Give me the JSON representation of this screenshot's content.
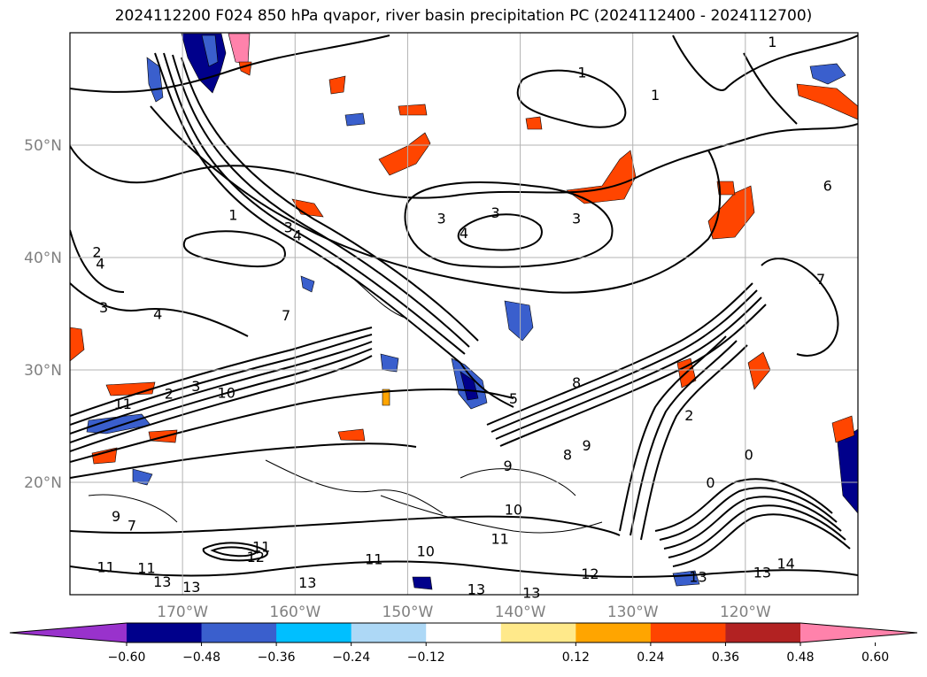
{
  "title": "2024112200 F024 850 hPa qvapor, river basin precipitation PC (2024112400 - 2024112700)",
  "chart_data": {
    "type": "heatmap",
    "title": "2024112200 F024 850 hPa qvapor, river basin precipitation PC (2024112400 - 2024112700)",
    "lon_range": [
      -180,
      -110
    ],
    "lat_range": [
      10,
      60
    ],
    "grid": true,
    "lon_ticks": [
      {
        "value": -170,
        "label": "170°W"
      },
      {
        "value": -160,
        "label": "160°W"
      },
      {
        "value": -150,
        "label": "150°W"
      },
      {
        "value": -140,
        "label": "140°W"
      },
      {
        "value": -130,
        "label": "130°W"
      },
      {
        "value": -120,
        "label": "120°W"
      }
    ],
    "lat_ticks": [
      {
        "value": 50,
        "label": "50°N"
      },
      {
        "value": 40,
        "label": "40°N"
      },
      {
        "value": 30,
        "label": "30°N"
      },
      {
        "value": 20,
        "label": "20°N"
      }
    ],
    "colorbar": {
      "extend": "both",
      "colors": [
        "#9932cc",
        "#00008b",
        "#3a5fcd",
        "#00bfff",
        "#add8f6",
        "#ffffff",
        "#ffe98a",
        "#ffa500",
        "#ff4500",
        "#b22222",
        "#ff82ab"
      ],
      "tick_values": [
        -0.6,
        -0.48,
        -0.36,
        -0.24,
        -0.12,
        0.12,
        0.24,
        0.36,
        0.48,
        0.6
      ],
      "tick_labels": [
        "−0.60",
        "−0.48",
        "−0.36",
        "−0.24",
        "−0.12",
        "0.12",
        "0.24",
        "0.36",
        "0.48",
        "0.60"
      ]
    },
    "contour_labels": [
      {
        "lon": -165.5,
        "lat": 43.8,
        "text": "1"
      },
      {
        "lon": -160.6,
        "lat": 42.7,
        "text": "3"
      },
      {
        "lon": -159.8,
        "lat": 42.0,
        "text": "4"
      },
      {
        "lon": -147.0,
        "lat": 43.5,
        "text": "3"
      },
      {
        "lon": -142.2,
        "lat": 44.0,
        "text": "3"
      },
      {
        "lon": -145.0,
        "lat": 42.2,
        "text": "4"
      },
      {
        "lon": -135.0,
        "lat": 43.5,
        "text": "3"
      },
      {
        "lon": -134.5,
        "lat": 56.5,
        "text": "1"
      },
      {
        "lon": -128.0,
        "lat": 54.5,
        "text": "1"
      },
      {
        "lon": -117.6,
        "lat": 59.2,
        "text": "1"
      },
      {
        "lon": -177.6,
        "lat": 40.5,
        "text": "2"
      },
      {
        "lon": -177.3,
        "lat": 39.5,
        "text": "4"
      },
      {
        "lon": -177.0,
        "lat": 35.6,
        "text": "3"
      },
      {
        "lon": -172.2,
        "lat": 35.0,
        "text": "4"
      },
      {
        "lon": -160.8,
        "lat": 34.9,
        "text": "7"
      },
      {
        "lon": -175.3,
        "lat": 27.0,
        "text": "11"
      },
      {
        "lon": -171.2,
        "lat": 27.9,
        "text": "2"
      },
      {
        "lon": -168.8,
        "lat": 28.6,
        "text": "3"
      },
      {
        "lon": -166.1,
        "lat": 28.0,
        "text": "10"
      },
      {
        "lon": -140.6,
        "lat": 27.5,
        "text": "5"
      },
      {
        "lon": -135.0,
        "lat": 28.9,
        "text": "8"
      },
      {
        "lon": -125.0,
        "lat": 26.0,
        "text": "2"
      },
      {
        "lon": -119.7,
        "lat": 22.5,
        "text": "0"
      },
      {
        "lon": -123.1,
        "lat": 20.0,
        "text": "0"
      },
      {
        "lon": -134.1,
        "lat": 23.3,
        "text": "9"
      },
      {
        "lon": -135.8,
        "lat": 22.5,
        "text": "8"
      },
      {
        "lon": -141.1,
        "lat": 21.5,
        "text": "9"
      },
      {
        "lon": -175.9,
        "lat": 17.0,
        "text": "9"
      },
      {
        "lon": -174.5,
        "lat": 16.2,
        "text": "7"
      },
      {
        "lon": -173.2,
        "lat": 12.4,
        "text": "11"
      },
      {
        "lon": -176.8,
        "lat": 12.5,
        "text": "11"
      },
      {
        "lon": -171.8,
        "lat": 11.2,
        "text": "13"
      },
      {
        "lon": -169.2,
        "lat": 10.7,
        "text": "13"
      },
      {
        "lon": -158.9,
        "lat": 11.1,
        "text": "13"
      },
      {
        "lon": -153.0,
        "lat": 13.2,
        "text": "11"
      },
      {
        "lon": -148.4,
        "lat": 13.9,
        "text": "10"
      },
      {
        "lon": -141.8,
        "lat": 15.0,
        "text": "11"
      },
      {
        "lon": -140.6,
        "lat": 17.6,
        "text": "10"
      },
      {
        "lon": -133.8,
        "lat": 11.9,
        "text": "12"
      },
      {
        "lon": -143.9,
        "lat": 10.5,
        "text": "13"
      },
      {
        "lon": -124.2,
        "lat": 11.6,
        "text": "13"
      },
      {
        "lon": -118.5,
        "lat": 12.0,
        "text": "13"
      },
      {
        "lon": -116.4,
        "lat": 12.8,
        "text": "14"
      },
      {
        "lon": -139.0,
        "lat": 10.2,
        "text": "13"
      },
      {
        "lon": -163.0,
        "lat": 14.3,
        "text": "11"
      },
      {
        "lon": -163.5,
        "lat": 13.4,
        "text": "12"
      },
      {
        "lon": -112.7,
        "lat": 46.4,
        "text": "6"
      },
      {
        "lon": -113.3,
        "lat": 38.1,
        "text": "7"
      }
    ]
  }
}
